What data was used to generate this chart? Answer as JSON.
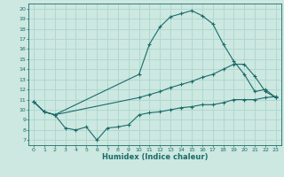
{
  "xlabel": "Humidex (Indice chaleur)",
  "bg_color": "#cce8e0",
  "line_color": "#1a6b6b",
  "grid_color": "#b0d8d0",
  "xlim": [
    -0.5,
    23.5
  ],
  "ylim": [
    6.5,
    20.5
  ],
  "yticks": [
    7,
    8,
    9,
    10,
    11,
    12,
    13,
    14,
    15,
    16,
    17,
    18,
    19,
    20
  ],
  "xticks": [
    0,
    1,
    2,
    3,
    4,
    5,
    6,
    7,
    8,
    9,
    10,
    11,
    12,
    13,
    14,
    15,
    16,
    17,
    18,
    19,
    20,
    21,
    22,
    23
  ],
  "line1_x": [
    0,
    1,
    2,
    10,
    11,
    12,
    13,
    14,
    15,
    16,
    17,
    18,
    19,
    20,
    21,
    22,
    23
  ],
  "line1_y": [
    10.8,
    9.8,
    9.5,
    13.5,
    16.5,
    18.2,
    19.2,
    19.5,
    19.8,
    19.3,
    18.5,
    16.5,
    14.8,
    13.5,
    11.8,
    12.0,
    11.2
  ],
  "line2_x": [
    0,
    1,
    2,
    10,
    11,
    12,
    13,
    14,
    15,
    16,
    17,
    18,
    19,
    20,
    21,
    22,
    23
  ],
  "line2_y": [
    10.8,
    9.8,
    9.5,
    11.2,
    11.5,
    11.8,
    12.2,
    12.5,
    12.8,
    13.2,
    13.5,
    14.0,
    14.5,
    14.5,
    13.3,
    11.8,
    11.2
  ],
  "line3_x": [
    0,
    1,
    2,
    3,
    4,
    5,
    6,
    7,
    8,
    9,
    10,
    11,
    12,
    13,
    14,
    15,
    16,
    17,
    18,
    19,
    20,
    21,
    22,
    23
  ],
  "line3_y": [
    10.8,
    9.8,
    9.5,
    8.2,
    8.0,
    8.3,
    7.0,
    8.2,
    8.3,
    8.5,
    9.5,
    9.7,
    9.8,
    10.0,
    10.2,
    10.3,
    10.5,
    10.5,
    10.7,
    11.0,
    11.0,
    11.0,
    11.2,
    11.3
  ]
}
